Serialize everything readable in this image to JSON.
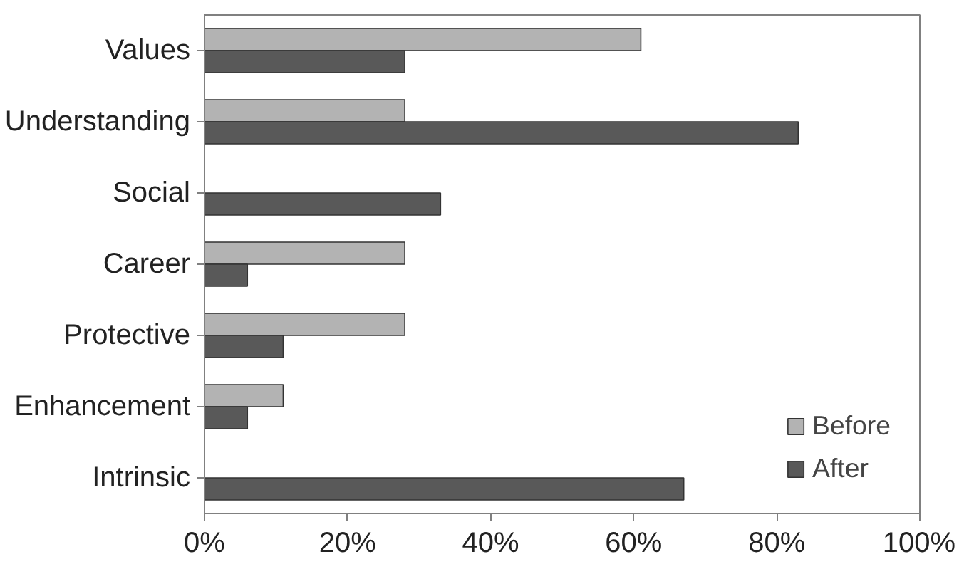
{
  "chart_data": {
    "type": "bar",
    "orientation": "horizontal",
    "categories": [
      "Values",
      "Understanding",
      "Social",
      "Career",
      "Protective",
      "Enhancement",
      "Intrinsic"
    ],
    "series": [
      {
        "name": "Before",
        "color": "#b3b3b3",
        "values": [
          61,
          28,
          null,
          28,
          28,
          11,
          null
        ]
      },
      {
        "name": "After",
        "color": "#595959",
        "values": [
          28,
          83,
          33,
          6,
          11,
          6,
          67
        ]
      }
    ],
    "xlim": [
      0,
      100
    ],
    "xticks": [
      {
        "value": 0,
        "label": "0%"
      },
      {
        "value": 20,
        "label": "20%"
      },
      {
        "value": 40,
        "label": "40%"
      },
      {
        "value": 60,
        "label": "60%"
      },
      {
        "value": 80,
        "label": "80%"
      },
      {
        "value": 100,
        "label": "100%"
      }
    ],
    "grid": false,
    "legend": "bottom right"
  }
}
